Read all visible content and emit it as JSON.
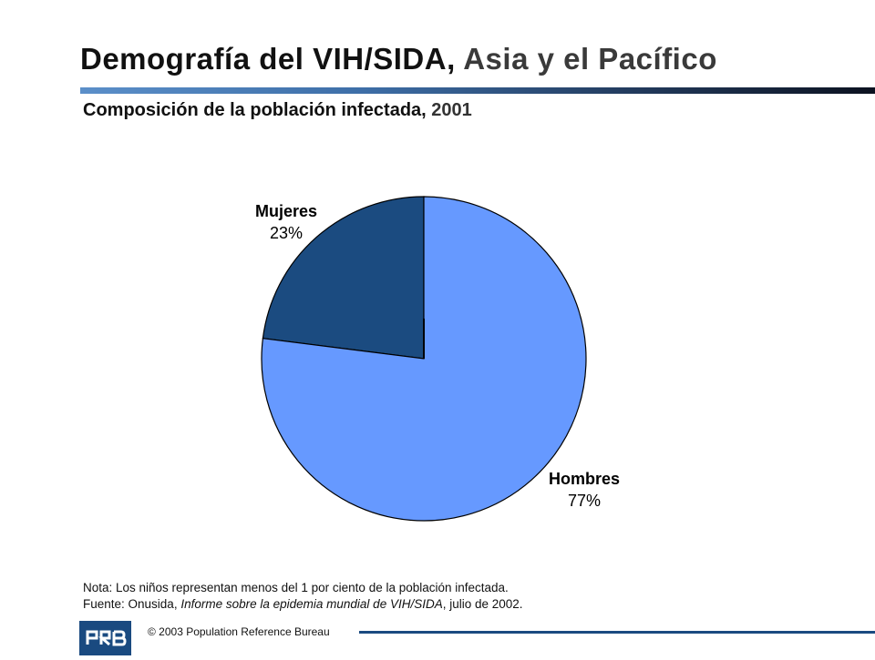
{
  "header": {
    "title_main": "Demografía del VIH/SIDA,",
    "title_region": "Asia y el Pacífico",
    "subtitle_main": "Composición de la población infectada,",
    "subtitle_year": "2001"
  },
  "chart_data": {
    "type": "pie",
    "title": "Composición de la población infectada, 2001",
    "slices": [
      {
        "label": "Mujeres",
        "value": 23,
        "display": "23%",
        "color": "#1b4b80"
      },
      {
        "label": "Hombres",
        "value": 77,
        "display": "77%",
        "color": "#6699ff"
      }
    ]
  },
  "notes": {
    "note_line": "Nota: Los niños representan menos del 1 por ciento de la población infectada.",
    "source_prefix": "Fuente: Onusida, ",
    "source_title": "Informe sobre la epidemia mundial de VIH/SIDA",
    "source_suffix": ", julio de 2002."
  },
  "footer": {
    "logo_text": "PRB",
    "copyright": "© 2003  Population Reference Bureau"
  },
  "colors": {
    "brand_blue": "#1a4a80",
    "mujeres": "#1b4b80",
    "hombres": "#6699ff"
  }
}
